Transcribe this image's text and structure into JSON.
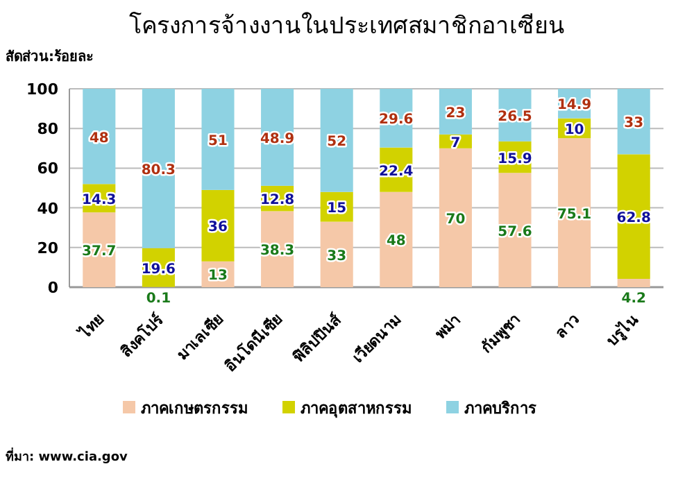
{
  "chart_data": {
    "type": "bar",
    "stacked": true,
    "title": "โครงการจ้างงานในประเทศสมาชิกอาเซียน",
    "ylabel": "สัดส่วน:ร้อยละ",
    "categories": [
      "ไทย",
      "สิงคโปร์",
      "มาเลเซีย",
      "อินโดนีเซีย",
      "ฟิลิปปินส์",
      "เวียดนาม",
      "พม่า",
      "กัมพูชา",
      "ลาว",
      "บรูไน"
    ],
    "series": [
      {
        "name": "ภาคเกษตรกรรม",
        "color": "#f5c8a8",
        "values": [
          37.7,
          0.1,
          13,
          38.3,
          33,
          48,
          70,
          57.6,
          75.1,
          4.2
        ]
      },
      {
        "name": "ภาคอุตสาหกรรม",
        "color": "#d2d200",
        "values": [
          14.3,
          19.6,
          36,
          12.8,
          15,
          22.4,
          7,
          15.9,
          10,
          62.8
        ]
      },
      {
        "name": "ภาคบริการ",
        "color": "#8ed2e2",
        "values": [
          48,
          80.3,
          51,
          48.9,
          52,
          29.6,
          23,
          26.5,
          14.9,
          33
        ]
      }
    ],
    "ylim": [
      0,
      100
    ],
    "yticks": [
      0,
      20,
      40,
      60,
      80,
      100
    ],
    "grid": "y",
    "legend": "bottom",
    "data_labels": true,
    "annotations": [
      "ที่มา: www.cia.gov"
    ]
  }
}
